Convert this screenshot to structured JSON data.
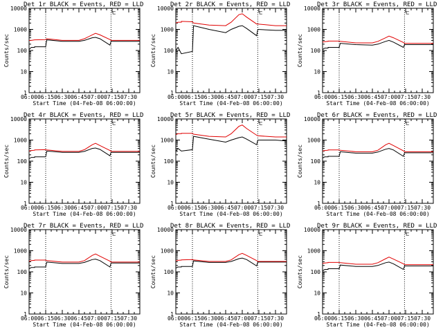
{
  "colors": {
    "events": "#000000",
    "lld": "#e00000",
    "axis": "#000000",
    "background": "#ffffff"
  },
  "chart_data": [
    {
      "type": "line",
      "title": "Det 1r BLACK = Events, RED = LLD",
      "xlabel": "Start Time (04-Feb-08 06:00:00)",
      "ylabel": "Counts/sec",
      "yscale": "log",
      "ylim": [
        1,
        10000
      ],
      "xlim": [
        "06:00",
        "07:40"
      ],
      "xticks": [
        "06:00",
        "06:15",
        "06:30",
        "06:45",
        "07:00",
        "07:15",
        "07:30"
      ],
      "yticks": [
        "1",
        "10",
        "100",
        "1000",
        "10000"
      ],
      "vlines": [
        "06:15",
        "07:14"
      ],
      "flag": "⊏",
      "x": [
        "06:00",
        "06:02",
        "06:05",
        "06:05",
        "06:15",
        "06:16",
        "06:30",
        "06:45",
        "06:50",
        "06:57",
        "07:00",
        "07:04",
        "07:13",
        "07:14",
        "07:30",
        "07:40"
      ],
      "series": [
        {
          "name": "BLACK",
          "values": [
            110,
            140,
            140,
            150,
            150,
            320,
            270,
            270,
            300,
            400,
            420,
            360,
            180,
            270,
            270,
            270
          ]
        },
        {
          "name": "RED",
          "values": [
            300,
            300,
            320,
            320,
            330,
            360,
            300,
            300,
            360,
            550,
            650,
            550,
            330,
            300,
            300,
            300
          ]
        }
      ]
    },
    {
      "type": "line",
      "title": "Det 2r BLACK = Events, RED = LLD",
      "xlabel": "Start Time (04-Feb-08 06:00:00)",
      "ylabel": "Counts/sec",
      "yscale": "log",
      "ylim": [
        1,
        10000
      ],
      "xlim": [
        "06:00",
        "07:40"
      ],
      "xticks": [
        "06:00",
        "06:15",
        "06:30",
        "06:45",
        "07:00",
        "07:15",
        "07:30"
      ],
      "yticks": [
        "1",
        "10",
        "100",
        "1000",
        "10000"
      ],
      "vlines": [
        "06:15",
        "07:14"
      ],
      "flag": "⊏",
      "x": [
        "06:00",
        "06:02",
        "06:05",
        "06:05",
        "06:15",
        "06:16",
        "06:30",
        "06:45",
        "06:50",
        "06:57",
        "07:00",
        "07:04",
        "07:13",
        "07:14",
        "07:30",
        "07:40"
      ],
      "series": [
        {
          "name": "BLACK",
          "values": [
            100,
            140,
            70,
            70,
            90,
            1500,
            1000,
            700,
            1000,
            1400,
            1500,
            1100,
            500,
            1000,
            900,
            900
          ]
        },
        {
          "name": "RED",
          "values": [
            2000,
            2200,
            2200,
            2400,
            2300,
            2000,
            1600,
            1500,
            2200,
            5000,
            5500,
            3800,
            1800,
            1800,
            1500,
            1500
          ]
        }
      ]
    },
    {
      "type": "line",
      "title": "Det 3r BLACK = Events, RED = LLD",
      "xlabel": "Start Time (04-Feb-08 06:00:00)",
      "ylabel": "Counts/sec",
      "yscale": "log",
      "ylim": [
        1,
        10000
      ],
      "xlim": [
        "06:00",
        "07:40"
      ],
      "xticks": [
        "06:00",
        "06:15",
        "06:30",
        "06:45",
        "07:00",
        "07:15",
        "07:30"
      ],
      "yticks": [
        "1",
        "10",
        "100",
        "1000",
        "10000"
      ],
      "vlines": [
        "06:15",
        "07:14"
      ],
      "flag": "⊏",
      "x": [
        "06:00",
        "06:02",
        "06:05",
        "06:05",
        "06:15",
        "06:16",
        "06:30",
        "06:45",
        "06:50",
        "06:57",
        "07:00",
        "07:04",
        "07:13",
        "07:14",
        "07:30",
        "07:40"
      ],
      "series": [
        {
          "name": "BLACK",
          "values": [
            110,
            130,
            130,
            140,
            140,
            220,
            190,
            180,
            200,
            270,
            300,
            250,
            140,
            190,
            190,
            190
          ]
        },
        {
          "name": "RED",
          "values": [
            250,
            260,
            270,
            280,
            280,
            270,
            230,
            230,
            270,
            400,
            480,
            400,
            240,
            220,
            220,
            220
          ]
        }
      ]
    },
    {
      "type": "line",
      "title": "Det 4r BLACK = Events, RED = LLD",
      "xlabel": "Start Time (04-Feb-08 06:00:00)",
      "ylabel": "Counts/sec",
      "yscale": "log",
      "ylim": [
        1,
        10000
      ],
      "xlim": [
        "06:00",
        "07:40"
      ],
      "xticks": [
        "06:00",
        "06:15",
        "06:30",
        "06:45",
        "07:00",
        "07:15",
        "07:30"
      ],
      "yticks": [
        "1",
        "10",
        "100",
        "1000",
        "10000"
      ],
      "vlines": [
        "06:15",
        "07:14"
      ],
      "flag": "⊏",
      "x": [
        "06:00",
        "06:02",
        "06:05",
        "06:05",
        "06:15",
        "06:16",
        "06:30",
        "06:45",
        "06:50",
        "06:57",
        "07:00",
        "07:04",
        "07:13",
        "07:14",
        "07:30",
        "07:40"
      ],
      "series": [
        {
          "name": "BLACK",
          "values": [
            130,
            150,
            150,
            160,
            160,
            300,
            260,
            260,
            290,
            400,
            420,
            360,
            180,
            260,
            260,
            260
          ]
        },
        {
          "name": "RED",
          "values": [
            300,
            320,
            330,
            340,
            350,
            340,
            290,
            290,
            350,
            600,
            700,
            550,
            320,
            290,
            290,
            290
          ]
        }
      ]
    },
    {
      "type": "line",
      "title": "Det 5r BLACK = Events, RED = LLD",
      "xlabel": "Start Time (04-Feb-08 06:00:00)",
      "ylabel": "Counts/sec",
      "yscale": "log",
      "ylim": [
        1,
        10000
      ],
      "xlim": [
        "06:00",
        "07:40"
      ],
      "xticks": [
        "06:00",
        "06:15",
        "06:30",
        "06:45",
        "07:00",
        "07:15",
        "07:30"
      ],
      "yticks": [
        "1",
        "10",
        "100",
        "1000",
        "10000"
      ],
      "vlines": [
        "06:15",
        "07:14"
      ],
      "flag": "⊏",
      "x": [
        "06:00",
        "06:02",
        "06:05",
        "06:05",
        "06:15",
        "06:16",
        "06:30",
        "06:45",
        "06:50",
        "06:57",
        "07:00",
        "07:04",
        "07:13",
        "07:14",
        "07:30",
        "07:40"
      ],
      "series": [
        {
          "name": "BLACK",
          "values": [
            300,
            400,
            300,
            300,
            350,
            1500,
            1100,
            800,
            1000,
            1300,
            1400,
            1100,
            600,
            1000,
            1000,
            900
          ]
        },
        {
          "name": "RED",
          "values": [
            1800,
            2000,
            2000,
            2100,
            2100,
            1900,
            1500,
            1400,
            2000,
            4500,
            5200,
            3500,
            1700,
            1600,
            1400,
            1400
          ]
        }
      ]
    },
    {
      "type": "line",
      "title": "Det 6r BLACK = Events, RED = LLD",
      "xlabel": "Start Time (04-Feb-08 06:00:00)",
      "ylabel": "Counts/sec",
      "yscale": "log",
      "ylim": [
        1,
        10000
      ],
      "xlim": [
        "06:00",
        "07:40"
      ],
      "xticks": [
        "06:00",
        "06:15",
        "06:30",
        "06:45",
        "07:00",
        "07:15",
        "07:30"
      ],
      "yticks": [
        "1",
        "10",
        "100",
        "1000",
        "10000"
      ],
      "vlines": [
        "06:15",
        "07:14"
      ],
      "flag": "⊏",
      "x": [
        "06:00",
        "06:02",
        "06:05",
        "06:05",
        "06:15",
        "06:16",
        "06:30",
        "06:45",
        "06:50",
        "06:57",
        "07:00",
        "07:04",
        "07:13",
        "07:14",
        "07:30",
        "07:40"
      ],
      "series": [
        {
          "name": "BLACK",
          "values": [
            140,
            160,
            160,
            170,
            170,
            280,
            240,
            240,
            270,
            370,
            400,
            340,
            170,
            250,
            250,
            250
          ]
        },
        {
          "name": "RED",
          "values": [
            300,
            320,
            330,
            340,
            340,
            330,
            280,
            280,
            330,
            600,
            700,
            550,
            310,
            280,
            280,
            280
          ]
        }
      ]
    },
    {
      "type": "line",
      "title": "Det 7r BLACK = Events, RED = LLD",
      "xlabel": "Start Time (04-Feb-08 06:00:00)",
      "ylabel": "Counts/sec",
      "yscale": "log",
      "ylim": [
        1,
        10000
      ],
      "xlim": [
        "06:00",
        "07:40"
      ],
      "xticks": [
        "06:00",
        "06:15",
        "06:30",
        "06:45",
        "07:00",
        "07:15",
        "07:30"
      ],
      "yticks": [
        "1",
        "10",
        "100",
        "1000",
        "10000"
      ],
      "vlines": [
        "06:15",
        "07:14"
      ],
      "flag": "⊏",
      "x": [
        "06:00",
        "06:02",
        "06:05",
        "06:05",
        "06:15",
        "06:16",
        "06:30",
        "06:45",
        "06:50",
        "06:57",
        "07:00",
        "07:04",
        "07:13",
        "07:14",
        "07:30",
        "07:40"
      ],
      "series": [
        {
          "name": "BLACK",
          "values": [
            140,
            160,
            160,
            170,
            170,
            290,
            250,
            250,
            280,
            380,
            400,
            340,
            170,
            260,
            260,
            260
          ]
        },
        {
          "name": "RED",
          "values": [
            320,
            340,
            350,
            360,
            360,
            340,
            290,
            290,
            340,
            600,
            700,
            550,
            320,
            290,
            290,
            290
          ]
        }
      ]
    },
    {
      "type": "line",
      "title": "Det 8r BLACK = Events, RED = LLD",
      "xlabel": "Start Time (04-Feb-08 06:00:00)",
      "ylabel": "Counts/sec",
      "yscale": "log",
      "ylim": [
        1,
        10000
      ],
      "xlim": [
        "06:00",
        "07:40"
      ],
      "xticks": [
        "06:00",
        "06:15",
        "06:30",
        "06:45",
        "07:00",
        "07:15",
        "07:30"
      ],
      "yticks": [
        "1",
        "10",
        "100",
        "1000",
        "10000"
      ],
      "vlines": [
        "06:15",
        "07:14"
      ],
      "flag": "⊏",
      "x": [
        "06:00",
        "06:02",
        "06:05",
        "06:05",
        "06:15",
        "06:16",
        "06:30",
        "06:45",
        "06:50",
        "06:57",
        "07:00",
        "07:04",
        "07:13",
        "07:14",
        "07:30",
        "07:40"
      ],
      "series": [
        {
          "name": "BLACK",
          "values": [
            150,
            170,
            170,
            180,
            180,
            330,
            280,
            280,
            310,
            420,
            450,
            380,
            190,
            290,
            290,
            290
          ]
        },
        {
          "name": "RED",
          "values": [
            330,
            350,
            360,
            370,
            380,
            370,
            310,
            310,
            370,
            650,
            750,
            600,
            340,
            310,
            310,
            310
          ]
        }
      ]
    },
    {
      "type": "line",
      "title": "Det 9r BLACK = Events, RED = LLD",
      "xlabel": "Start Time (04-Feb-08 06:00:00)",
      "ylabel": "Counts/sec",
      "yscale": "log",
      "ylim": [
        1,
        10000
      ],
      "xlim": [
        "06:00",
        "07:40"
      ],
      "xticks": [
        "06:00",
        "06:15",
        "06:30",
        "06:45",
        "07:00",
        "07:15",
        "07:30"
      ],
      "yticks": [
        "1",
        "10",
        "100",
        "1000",
        "10000"
      ],
      "vlines": [
        "06:15",
        "07:14"
      ],
      "flag": "⊏",
      "x": [
        "06:00",
        "06:02",
        "06:05",
        "06:05",
        "06:15",
        "06:16",
        "06:30",
        "06:45",
        "06:50",
        "06:57",
        "07:00",
        "07:04",
        "07:13",
        "07:14",
        "07:30",
        "07:40"
      ],
      "series": [
        {
          "name": "BLACK",
          "values": [
            110,
            130,
            130,
            140,
            140,
            210,
            180,
            180,
            200,
            270,
            290,
            240,
            130,
            190,
            190,
            190
          ]
        },
        {
          "name": "RED",
          "values": [
            250,
            260,
            270,
            280,
            280,
            270,
            230,
            230,
            270,
            420,
            500,
            400,
            240,
            220,
            220,
            220
          ]
        }
      ]
    }
  ]
}
